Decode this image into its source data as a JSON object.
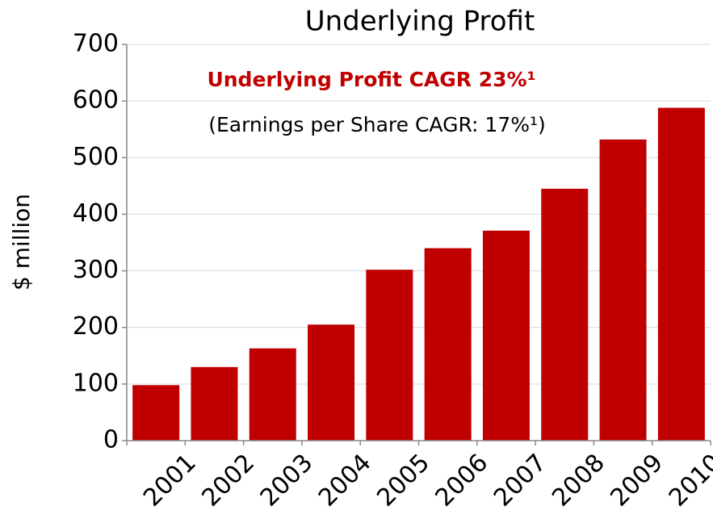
{
  "chart_data": {
    "type": "bar",
    "title": "Underlying Profit",
    "annotations": [
      "Underlying Profit CAGR 23%¹",
      "(Earnings per Share CAGR: 17%¹)"
    ],
    "y_label": "$ million",
    "categories": [
      "2001",
      "2002",
      "2003",
      "2004",
      "2005",
      "2006",
      "2007",
      "2008",
      "2009",
      "2010"
    ],
    "values": [
      98,
      130,
      163,
      205,
      302,
      340,
      371,
      445,
      532,
      588
    ],
    "color": "#c00000",
    "ylim": [
      0,
      700
    ],
    "yticks": [
      0,
      100,
      200,
      300,
      400,
      500,
      600,
      700
    ],
    "grid": true
  }
}
